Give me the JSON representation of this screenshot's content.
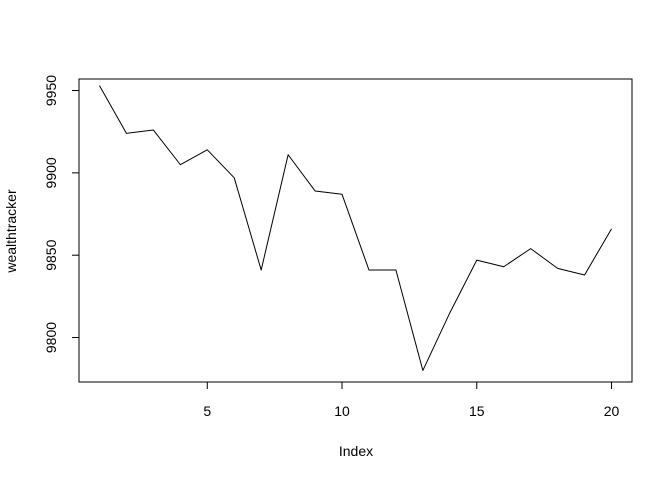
{
  "chart_data": {
    "type": "line",
    "title": "",
    "xlabel": "Index",
    "ylabel": "wealthtracker",
    "xlim": [
      0.24,
      20.76
    ],
    "ylim": [
      9773,
      9957
    ],
    "x_ticks": [
      5,
      10,
      15,
      20
    ],
    "y_ticks": [
      9800,
      9850,
      9900,
      9950
    ],
    "grid": false,
    "line_color": "#000000",
    "series": [
      {
        "x": [
          1,
          2,
          3,
          4,
          5,
          6,
          7,
          8,
          9,
          10,
          11,
          12,
          13,
          14,
          15,
          16,
          17,
          18,
          19,
          20
        ],
        "values": [
          9953,
          9924,
          9926,
          9905,
          9914,
          9897,
          9841,
          9911,
          9889,
          9887,
          9841,
          9841,
          9780,
          9815,
          9847,
          9843,
          9854,
          9842,
          9838,
          9866
        ]
      }
    ]
  }
}
